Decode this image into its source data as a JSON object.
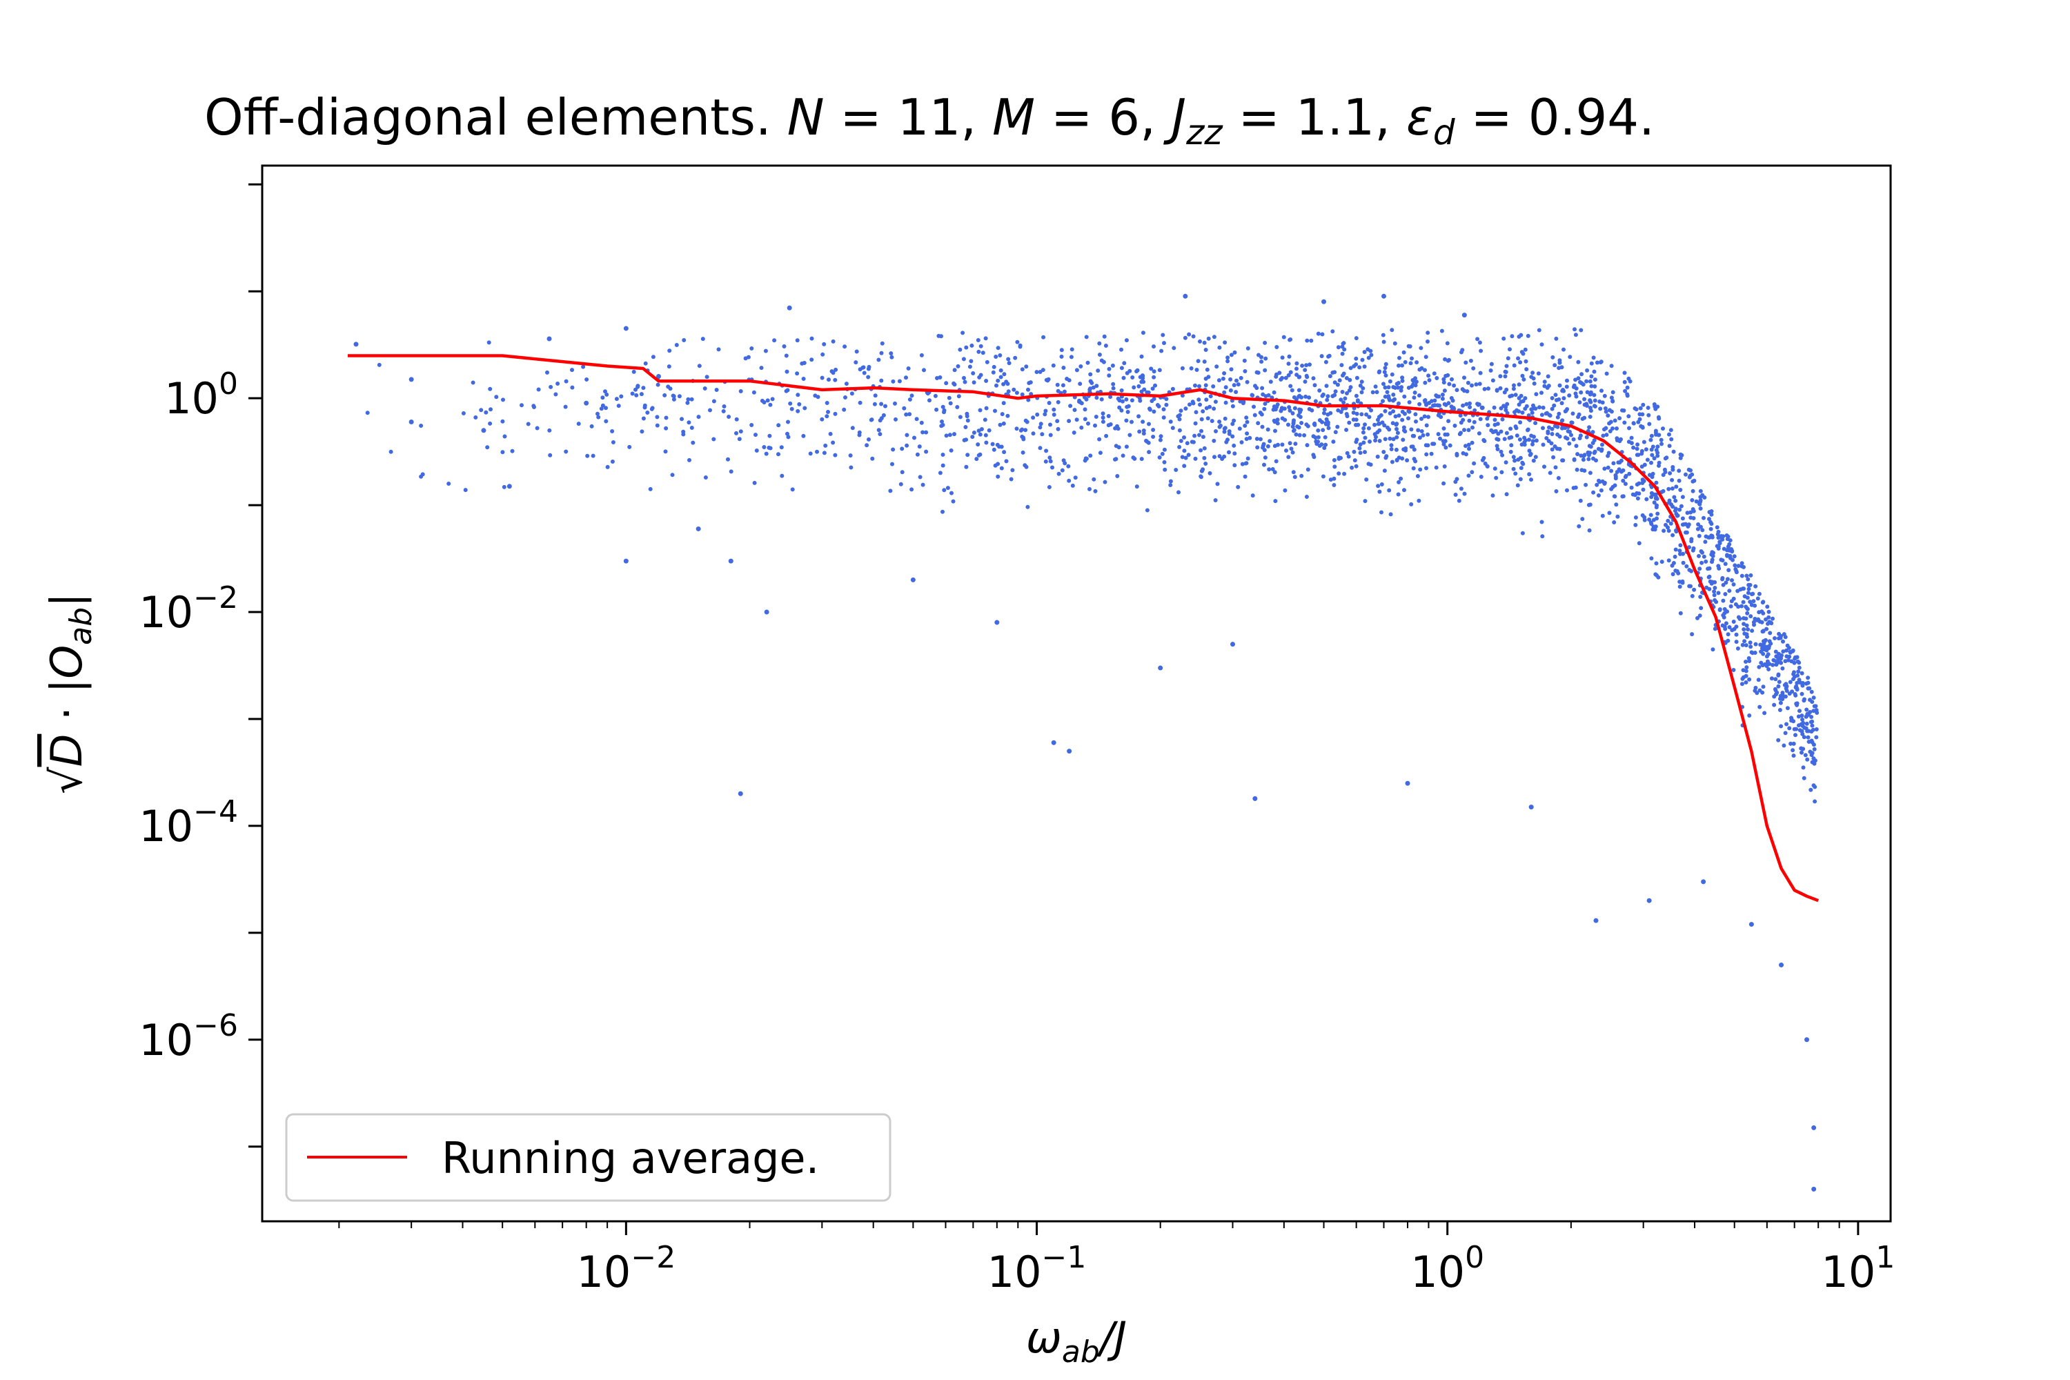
{
  "chart_data": {
    "type": "scatter",
    "title": {
      "prefix": "Off-diagonal elements. ",
      "params": [
        {
          "symbol": "N",
          "sub": "",
          "value": "11"
        },
        {
          "symbol": "M",
          "sub": "",
          "value": "6"
        },
        {
          "symbol": "J",
          "sub": "zz",
          "value": "1.1"
        },
        {
          "symbol": "ε",
          "sub": "d",
          "value": "0.94"
        }
      ],
      "suffix": "."
    },
    "xlabel": {
      "symbol": "ω",
      "sub": "ab",
      "rest": "/J"
    },
    "ylabel": {
      "root": "√",
      "symbol": "D",
      "middle": " · |",
      "symbol2": "O",
      "sub": "ab",
      "end": "|"
    },
    "xscale": "log",
    "yscale": "log",
    "xlim": [
      0.0013,
      12
    ],
    "ylim": [
      2e-08,
      150
    ],
    "x_ticks": [
      {
        "value": 0.01,
        "base": "10",
        "exp": "−2"
      },
      {
        "value": 0.1,
        "base": "10",
        "exp": "−1"
      },
      {
        "value": 1,
        "base": "10",
        "exp": "0"
      },
      {
        "value": 10,
        "base": "10",
        "exp": "1"
      }
    ],
    "y_ticks": [
      {
        "value": 1e-06,
        "base": "10",
        "exp": "−6"
      },
      {
        "value": 0.0001,
        "base": "10",
        "exp": "−4"
      },
      {
        "value": 0.01,
        "base": "10",
        "exp": "−2"
      },
      {
        "value": 1,
        "base": "10",
        "exp": "0"
      }
    ],
    "legend": {
      "label": "Running average.",
      "position": "lower-left"
    },
    "series": [
      {
        "name": "Off-diagonal elements",
        "kind": "scatter",
        "color": "#4169e1",
        "points_sample": [
          [
            0.0022,
            3.2
          ],
          [
            0.003,
            1.5
          ],
          [
            0.003,
            0.6
          ],
          [
            0.0045,
            0.5
          ],
          [
            0.0052,
            0.15
          ],
          [
            0.0065,
            3.6
          ],
          [
            0.008,
            0.9
          ],
          [
            0.01,
            4.5
          ],
          [
            0.01,
            0.03
          ],
          [
            0.012,
            1.6
          ],
          [
            0.015,
            0.06
          ],
          [
            0.018,
            0.03
          ],
          [
            0.019,
            0.0002
          ],
          [
            0.022,
            0.01
          ],
          [
            0.025,
            7
          ],
          [
            0.05,
            0.02
          ],
          [
            0.08,
            0.008
          ],
          [
            0.11,
            0.0006
          ],
          [
            0.12,
            0.0005
          ],
          [
            0.2,
            0.003
          ],
          [
            0.23,
            9
          ],
          [
            0.3,
            0.005
          ],
          [
            0.34,
            0.00018
          ],
          [
            0.5,
            8
          ],
          [
            0.7,
            9
          ],
          [
            0.8,
            0.00025
          ],
          [
            1.1,
            6
          ],
          [
            1.6,
            0.00015
          ],
          [
            2.3,
            1.3e-05
          ],
          [
            3.1,
            2e-05
          ],
          [
            4.2,
            3e-05
          ],
          [
            5.5,
            1.2e-05
          ],
          [
            6.5,
            5e-06
          ],
          [
            7.5,
            1e-06
          ],
          [
            7.8,
            1.5e-07
          ],
          [
            7.8,
            4e-08
          ]
        ]
      },
      {
        "name": "Running average.",
        "kind": "line",
        "color": "#ff0000",
        "x": [
          0.0021,
          0.003,
          0.005,
          0.007,
          0.009,
          0.011,
          0.012,
          0.02,
          0.03,
          0.04,
          0.05,
          0.07,
          0.09,
          0.1,
          0.15,
          0.2,
          0.25,
          0.3,
          0.4,
          0.5,
          0.7,
          1.0,
          1.3,
          1.6,
          2.0,
          2.4,
          2.8,
          3.2,
          3.6,
          4.0,
          4.5,
          5.0,
          5.5,
          6.0,
          6.5,
          7.0,
          7.5,
          8.0
        ],
        "y": [
          2.5,
          2.5,
          2.5,
          2.2,
          2.0,
          1.9,
          1.45,
          1.45,
          1.2,
          1.25,
          1.2,
          1.15,
          1.0,
          1.05,
          1.1,
          1.05,
          1.2,
          1.0,
          0.95,
          0.85,
          0.85,
          0.75,
          0.7,
          0.65,
          0.55,
          0.4,
          0.25,
          0.15,
          0.07,
          0.025,
          0.009,
          0.002,
          0.0005,
          0.0001,
          4e-05,
          2.5e-05,
          2.2e-05,
          2e-05
        ]
      }
    ]
  }
}
